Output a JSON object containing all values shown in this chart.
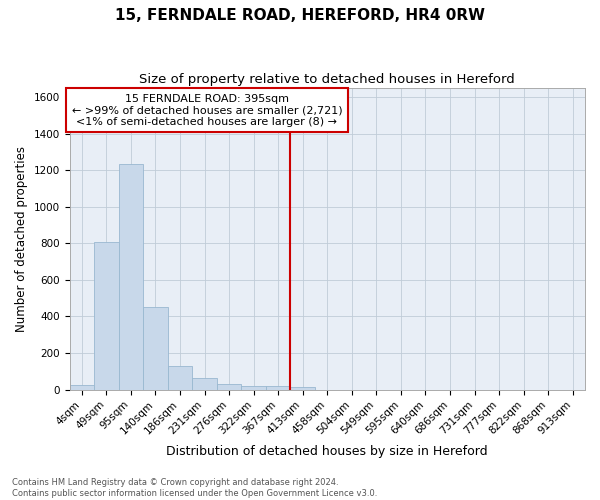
{
  "title": "15, FERNDALE ROAD, HEREFORD, HR4 0RW",
  "subtitle": "Size of property relative to detached houses in Hereford",
  "xlabel": "Distribution of detached houses by size in Hereford",
  "ylabel": "Number of detached properties",
  "footnote": "Contains HM Land Registry data © Crown copyright and database right 2024.\nContains public sector information licensed under the Open Government Licence v3.0.",
  "bin_labels": [
    "4sqm",
    "49sqm",
    "95sqm",
    "140sqm",
    "186sqm",
    "231sqm",
    "276sqm",
    "322sqm",
    "367sqm",
    "413sqm",
    "458sqm",
    "504sqm",
    "549sqm",
    "595sqm",
    "640sqm",
    "686sqm",
    "731sqm",
    "777sqm",
    "822sqm",
    "868sqm",
    "913sqm"
  ],
  "bar_heights": [
    25,
    805,
    1235,
    450,
    130,
    65,
    30,
    20,
    20,
    15,
    0,
    0,
    0,
    0,
    0,
    0,
    0,
    0,
    0,
    0,
    0
  ],
  "bar_color": "#c8d8ea",
  "bar_edgecolor": "#99b8d0",
  "annotation_line1": "15 FERNDALE ROAD: 395sqm",
  "annotation_line2": "← >99% of detached houses are smaller (2,721)",
  "annotation_line3": "<1% of semi-detached houses are larger (8) →",
  "vline_color": "#cc0000",
  "annotation_box_edgecolor": "#cc0000",
  "ylim": [
    0,
    1650
  ],
  "yticks": [
    0,
    200,
    400,
    600,
    800,
    1000,
    1200,
    1400,
    1600
  ],
  "grid_color": "#c0ccd8",
  "bg_color": "#e8eef6",
  "title_fontsize": 11,
  "subtitle_fontsize": 9.5,
  "xlabel_fontsize": 9,
  "ylabel_fontsize": 8.5,
  "tick_fontsize": 7.5,
  "annotation_fontsize": 8,
  "footnote_fontsize": 6,
  "footnote_color": "#555555"
}
